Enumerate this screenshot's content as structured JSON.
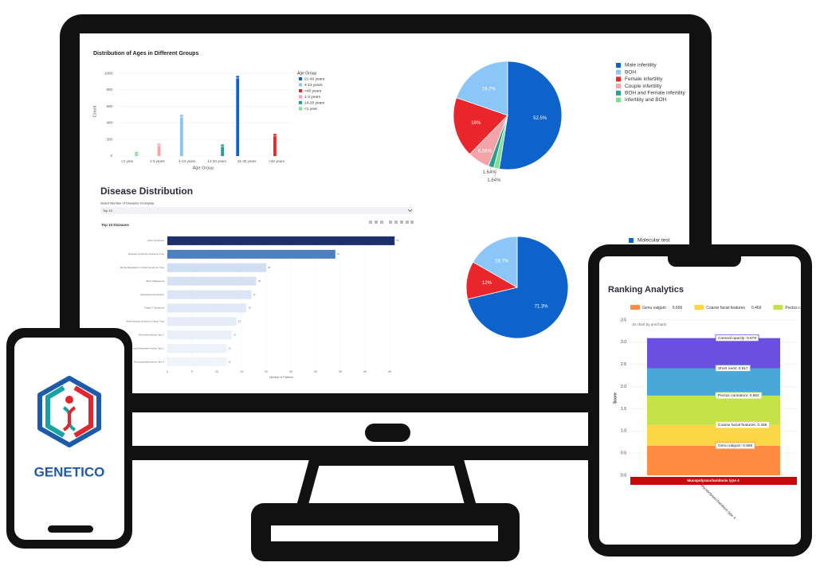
{
  "brand": {
    "name": "GENETICO"
  },
  "chart_data": [
    {
      "type": "bar",
      "title": "Distribution of Ages in Different Groups",
      "x_label": "Age Group",
      "y_label": "Count",
      "legend_title": "Age Group",
      "categories": [
        "<1 year",
        "1-3 years",
        "4-13 years",
        "14-20 years",
        "21-40 years",
        ">40 years"
      ],
      "series": [
        {
          "name": "21-40 years",
          "color": "#0d63c9",
          "values": [
            null,
            null,
            null,
            null,
            970,
            null
          ]
        },
        {
          "name": "4-13 years",
          "color": "#89c4f4",
          "values": [
            null,
            null,
            500,
            null,
            null,
            null
          ]
        },
        {
          "name": ">40 years",
          "color": "#e8262b",
          "values": [
            null,
            null,
            null,
            null,
            null,
            270
          ]
        },
        {
          "name": "1-3 years",
          "color": "#f4a3a8",
          "values": [
            null,
            150,
            null,
            null,
            null,
            null
          ]
        },
        {
          "name": "14-20 years",
          "color": "#2a9d8f",
          "values": [
            null,
            null,
            null,
            140,
            null,
            null
          ]
        },
        {
          "name": "<1 year",
          "color": "#7ee08f",
          "values": [
            50,
            null,
            null,
            null,
            null,
            null
          ]
        }
      ],
      "ylim": [
        0,
        1050
      ],
      "yticks": [
        0,
        200,
        400,
        600,
        800,
        1000
      ],
      "grid": true
    },
    {
      "type": "pie",
      "categories": [
        "Male infertility",
        "BOH",
        "Female infertility",
        "Couple infertility",
        "BOH and Female infertility",
        "infertility and BOH"
      ],
      "values": [
        52.5,
        19.7,
        18,
        6.56,
        1.64,
        1.64
      ],
      "value_labels": [
        "52.5%",
        "19.7%",
        "18%",
        "6.56%",
        "1.64%",
        "1.64%"
      ],
      "colors": [
        "#0d63c9",
        "#8ac6f8",
        "#e8262b",
        "#f4a3a8",
        "#2a9d8f",
        "#7ee08f"
      ]
    },
    {
      "type": "barh",
      "title": "Disease Distribution",
      "control_label": "Select Number of Diseases to Display",
      "control_value": "Top 10",
      "subtitle": "Top 10 Diseases",
      "categories": [
        "Down Syndrome",
        "Muscular Dystrophy Duchenne Type",
        "Mental Retardation X-linked Syndromic Type",
        "Beta Thalassemia",
        "Spinal Muscular Atrophy",
        "Fragile X Syndrome",
        "Ehlers-Danlos Syndrome Classic Type",
        "Neurofibromatosis Type 1",
        "Spinal Muscular Atrophy Type 1",
        "Mucopolysaccharidosis Type 4"
      ],
      "values": [
        46,
        34,
        20,
        18,
        17,
        16,
        14,
        13,
        12,
        12
      ],
      "colors": [
        "#1f2f6b",
        "#4e7fbf",
        "#d0def2",
        "#d6e2f3",
        "#dbe5f5",
        "#e0e9f6",
        "#e5ecf8",
        "#e9f0f9",
        "#edf2fa",
        "#f0f4fb"
      ],
      "x_label": "Number of Patients",
      "xlim": [
        0,
        47
      ],
      "xticks": [
        0,
        5,
        10,
        15,
        20,
        25,
        30,
        35,
        40,
        45
      ],
      "grid": true
    },
    {
      "type": "pie",
      "categories": [
        "Molecular test",
        null,
        null
      ],
      "values": [
        71.3,
        16.7,
        12
      ],
      "value_labels": [
        "71.3%",
        "16.7%",
        "12%"
      ],
      "colors": [
        "#0d63c9",
        "#8ac6f8",
        "#e8262b"
      ]
    },
    {
      "type": "stacked_bar",
      "title": "Ranking Analytics",
      "credit": "JS chart by amCharts",
      "y_label": "Score",
      "categories": [
        "Mucopolysaccharidosis type 4"
      ],
      "series": [
        {
          "name": "Genu valgum",
          "color": "#ff8c42",
          "values": [
            0.666
          ],
          "value_labels": [
            "Genu valgum: 0.666"
          ]
        },
        {
          "name": "Coarse facial features",
          "color": "#fbd748",
          "values": [
            0.469
          ],
          "value_labels": [
            "Coarse facial features: 0.469"
          ]
        },
        {
          "name": "Pectus carinatum",
          "color": "#c5e24a",
          "values": [
            0.662
          ],
          "value_labels": [
            "Pectus carinatum: 0.662"
          ]
        },
        {
          "name": "Short neck",
          "color": "#4aa8d8",
          "values": [
            0.617
          ],
          "value_labels": [
            "Short neck: 0.617"
          ]
        },
        {
          "name": "Corneal opacity",
          "color": "#6b4fe0",
          "values": [
            0.679
          ],
          "value_labels": [
            "Corneal opacity: 0.679"
          ]
        }
      ],
      "ylim": [
        0,
        3.5
      ],
      "yticks": [
        {
          "value": 0,
          "label": "0.0"
        },
        {
          "value": 0.5,
          "label": "0.5"
        },
        {
          "value": 1,
          "label": "1.0"
        },
        {
          "value": 1.5,
          "label": "1.5"
        },
        {
          "value": 2,
          "label": "2.0"
        },
        {
          "value": 2.5,
          "label": "2.5"
        },
        {
          "value": 3,
          "label": "3.0"
        },
        {
          "value": 3.5,
          "label": "3.5"
        }
      ],
      "grid": true
    }
  ]
}
